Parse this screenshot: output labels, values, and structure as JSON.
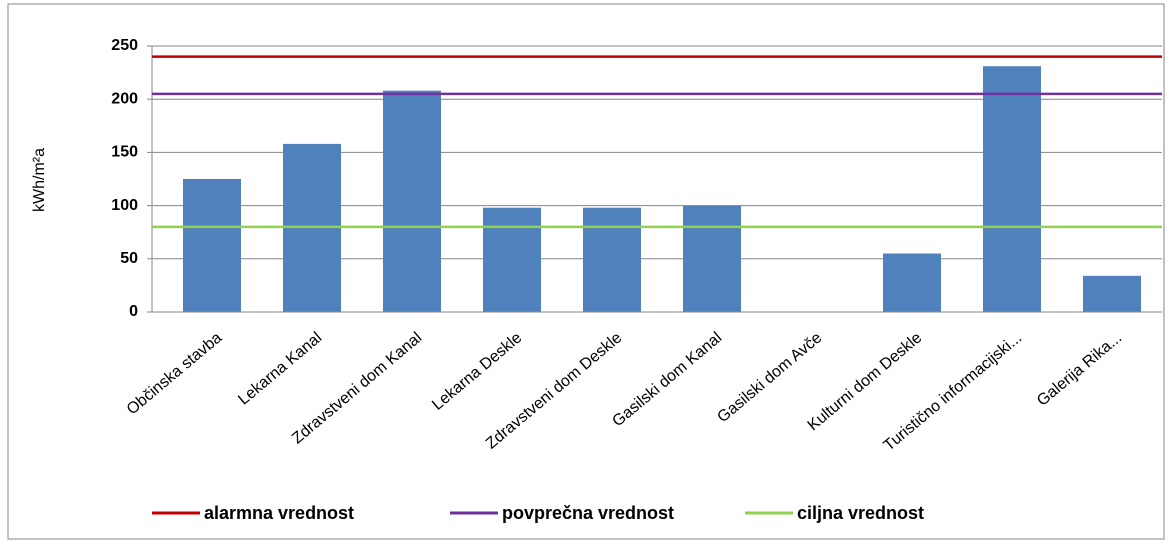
{
  "chart_data": {
    "type": "bar",
    "y_label": "kWh/m²a",
    "categories": [
      "Občinska stavba",
      "Lekarna Kanal",
      "Zdravstveni dom Kanal",
      "Lekarna Deskle",
      "Zdravstveni dom Deskle",
      "Gasilski dom Kanal",
      "Gasilski dom Avče",
      "Kulturni dom Deskle",
      "Turistično informacijski...",
      "Galerija Rika..."
    ],
    "values": [
      125,
      158,
      208,
      98,
      98,
      100,
      0,
      55,
      231,
      34
    ],
    "color": "#4f81bd",
    "reference_lines": [
      {
        "name": "alarmna vrednost",
        "value": 240,
        "color": "#c00000"
      },
      {
        "name": "povprečna vrednost",
        "value": 205,
        "color": "#7030a0"
      },
      {
        "name": "ciljna vrednost",
        "value": 80,
        "color": "#92d050"
      }
    ],
    "ylim": [
      0,
      250
    ],
    "yticks": [
      0,
      50,
      100,
      150,
      200,
      250
    ],
    "grid": true
  }
}
